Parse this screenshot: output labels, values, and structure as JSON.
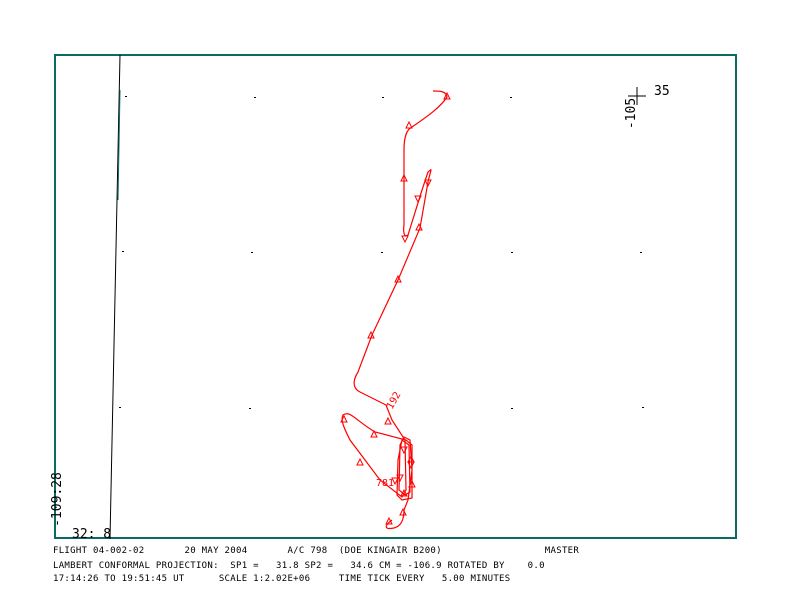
{
  "map": {
    "corner_lat_label": "35",
    "corner_lon_label": "-105",
    "origin_lon_label": "-109:28",
    "origin_lat_label": "32: 8",
    "track_labels": [
      "192",
      "781"
    ],
    "track_color": "#ff0000",
    "frame_color": "#0a6b63"
  },
  "footer": {
    "line1": "FLIGHT 04-002-02       20 MAY 2004       A/C 798  (DOE KINGAIR B200)                  MASTER",
    "line2": "LAMBERT CONFORMAL PROJECTION:  SP1 =   31.8 SP2 =   34.6 CM = -106.9 ROTATED BY    0.0",
    "line3": "17:14:26 TO 19:51:45 UT      SCALE 1:2.02E+06     TIME TICK EVERY   5.00 MINUTES"
  }
}
